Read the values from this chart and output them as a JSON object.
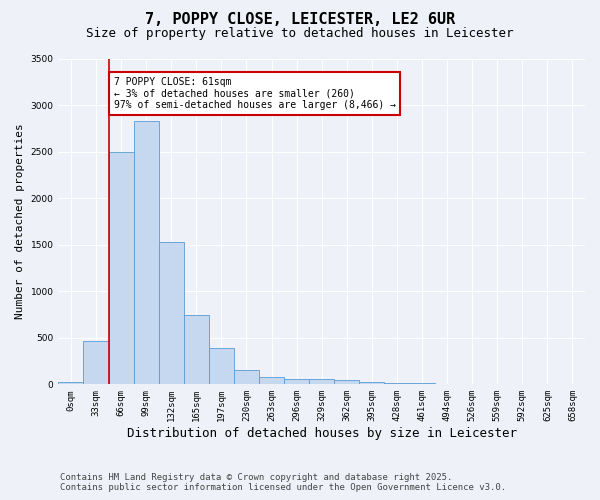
{
  "title_line1": "7, POPPY CLOSE, LEICESTER, LE2 6UR",
  "title_line2": "Size of property relative to detached houses in Leicester",
  "xlabel": "Distribution of detached houses by size in Leicester",
  "ylabel": "Number of detached properties",
  "bar_labels": [
    "0sqm",
    "33sqm",
    "66sqm",
    "99sqm",
    "132sqm",
    "165sqm",
    "197sqm",
    "230sqm",
    "263sqm",
    "296sqm",
    "329sqm",
    "362sqm",
    "395sqm",
    "428sqm",
    "461sqm",
    "494sqm",
    "526sqm",
    "559sqm",
    "592sqm",
    "625sqm",
    "658sqm"
  ],
  "bar_values": [
    20,
    470,
    2500,
    2830,
    1530,
    750,
    390,
    150,
    80,
    60,
    55,
    45,
    20,
    15,
    10,
    5,
    3,
    2,
    1,
    1,
    0
  ],
  "bar_color": "#c5d8ef",
  "bar_edge_color": "#5b9bd5",
  "ylim": [
    0,
    3500
  ],
  "yticks": [
    0,
    500,
    1000,
    1500,
    2000,
    2500,
    3000,
    3500
  ],
  "vline_x": 2,
  "vline_color": "#cc0000",
  "annotation_text": "7 POPPY CLOSE: 61sqm\n← 3% of detached houses are smaller (260)\n97% of semi-detached houses are larger (8,466) →",
  "annotation_box_color": "#ffffff",
  "annotation_box_edge": "#cc0000",
  "bg_color": "#eef2f8",
  "footnote": "Contains HM Land Registry data © Crown copyright and database right 2025.\nContains public sector information licensed under the Open Government Licence v3.0.",
  "grid_color": "#ffffff",
  "title_fontsize": 11,
  "subtitle_fontsize": 9,
  "xlabel_fontsize": 9,
  "ylabel_fontsize": 8,
  "tick_fontsize": 6.5,
  "footnote_fontsize": 6.5,
  "annot_fontsize": 7
}
